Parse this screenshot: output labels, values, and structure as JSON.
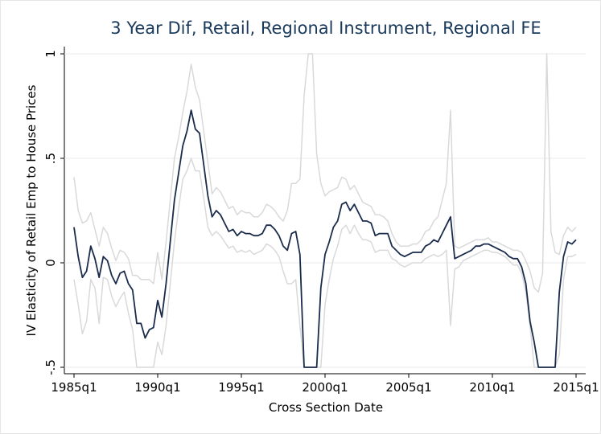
{
  "chart_data": {
    "type": "line",
    "title": "3 Year Dif, Retail, Regional Instrument, Regional FE",
    "x_label": "Cross Section Date",
    "y_label": "IV Elasticity of Retail Emp to House Prices",
    "x": [
      1985,
      1985.25,
      1985.5,
      1985.75,
      1986,
      1986.25,
      1986.5,
      1986.75,
      1987,
      1987.25,
      1987.5,
      1987.75,
      1988,
      1988.25,
      1988.5,
      1988.75,
      1989,
      1989.25,
      1989.5,
      1989.75,
      1990,
      1990.25,
      1990.5,
      1990.75,
      1991,
      1991.25,
      1991.5,
      1991.75,
      1992,
      1992.25,
      1992.5,
      1992.75,
      1993,
      1993.25,
      1993.5,
      1993.75,
      1994,
      1994.25,
      1994.5,
      1994.75,
      1995,
      1995.25,
      1995.5,
      1995.75,
      1996,
      1996.25,
      1996.5,
      1996.75,
      1997,
      1997.25,
      1997.5,
      1997.75,
      1998,
      1998.25,
      1998.5,
      1998.75,
      1999,
      1999.25,
      1999.5,
      1999.75,
      2000,
      2000.25,
      2000.5,
      2000.75,
      2001,
      2001.25,
      2001.5,
      2001.75,
      2002,
      2002.25,
      2002.5,
      2002.75,
      2003,
      2003.25,
      2003.5,
      2003.75,
      2004,
      2004.25,
      2004.5,
      2004.75,
      2005,
      2005.25,
      2005.5,
      2005.75,
      2006,
      2006.25,
      2006.5,
      2006.75,
      2007,
      2007.25,
      2007.5,
      2007.75,
      2008,
      2008.25,
      2008.5,
      2008.75,
      2009,
      2009.25,
      2009.5,
      2009.75,
      2010,
      2010.25,
      2010.5,
      2010.75,
      2011,
      2011.25,
      2011.5,
      2011.75,
      2012,
      2012.25,
      2012.5,
      2012.75,
      2013,
      2013.25,
      2013.5,
      2013.75,
      2014,
      2014.25,
      2014.5,
      2014.75,
      2015
    ],
    "series": [
      {
        "color": "#d9d9d9",
        "values": [
          0.41,
          0.25,
          0.19,
          0.2,
          0.24,
          0.16,
          0.08,
          0.17,
          0.14,
          0.07,
          0.01,
          0.06,
          0.05,
          0.02,
          -0.06,
          -0.06,
          -0.08,
          -0.08,
          -0.08,
          -0.1,
          0.05,
          -0.08,
          0.1,
          0.3,
          0.5,
          0.6,
          0.72,
          0.82,
          0.95,
          0.84,
          0.78,
          0.63,
          0.48,
          0.33,
          0.36,
          0.34,
          0.3,
          0.26,
          0.27,
          0.23,
          0.25,
          0.24,
          0.24,
          0.22,
          0.22,
          0.24,
          0.28,
          0.27,
          0.25,
          0.22,
          0.2,
          0.25,
          0.38,
          0.38,
          0.4,
          0.8,
          1,
          1,
          0.52,
          0.38,
          0.32,
          0.34,
          0.35,
          0.36,
          0.41,
          0.4,
          0.35,
          0.37,
          0.33,
          0.29,
          0.28,
          0.27,
          0.23,
          0.23,
          0.22,
          0.2,
          0.14,
          0.1,
          0.08,
          0.08,
          0.08,
          0.09,
          0.09,
          0.11,
          0.15,
          0.16,
          0.2,
          0.22,
          0.3,
          0.38,
          0.73,
          0.08,
          0.07,
          0.08,
          0.09,
          0.1,
          0.11,
          0.11,
          0.11,
          0.12,
          0.1,
          0.1,
          0.09,
          0.08,
          0.07,
          0.06,
          0.06,
          0.05,
          0.01,
          -0.04,
          -0.12,
          -0.14,
          -0.05,
          1,
          0.15,
          0.05,
          0.04,
          0.13,
          0.17,
          0.15,
          0.17
        ]
      },
      {
        "color": "#d9d9d9",
        "values": [
          -0.08,
          -0.2,
          -0.34,
          -0.28,
          -0.08,
          -0.12,
          -0.29,
          -0.07,
          -0.08,
          -0.16,
          -0.21,
          -0.17,
          -0.14,
          -0.24,
          -0.32,
          -0.5,
          -0.5,
          -0.5,
          -0.5,
          -0.5,
          -0.38,
          -0.44,
          -0.3,
          -0.1,
          0.1,
          0.26,
          0.4,
          0.44,
          0.5,
          0.44,
          0.44,
          0.31,
          0.17,
          0.13,
          0.15,
          0.13,
          0.1,
          0.07,
          0.08,
          0.05,
          0.06,
          0.05,
          0.06,
          0.04,
          0.05,
          0.06,
          0.09,
          0.08,
          0.06,
          0.03,
          -0.04,
          -0.1,
          -0.1,
          -0.08,
          -0.3,
          -0.5,
          -0.5,
          -0.5,
          -0.5,
          -0.5,
          -0.2,
          -0.08,
          0.02,
          0.08,
          0.16,
          0.18,
          0.14,
          0.18,
          0.14,
          0.11,
          0.11,
          0.1,
          0.05,
          0.06,
          0.06,
          0.06,
          0.02,
          0.01,
          -0.01,
          -0.02,
          -0.01,
          0,
          0,
          0,
          0.02,
          0.03,
          0.04,
          0.03,
          0.04,
          0.06,
          -0.3,
          -0.03,
          -0.02,
          0.01,
          0.02,
          0.03,
          0.04,
          0.05,
          0.06,
          0.06,
          0.05,
          0.05,
          0.04,
          0.03,
          0.01,
          -0.01,
          -0.01,
          -0.05,
          -0.14,
          -0.3,
          -0.5,
          -0.5,
          -0.5,
          -0.5,
          -0.5,
          -0.5,
          -0.44,
          -0.08,
          0.03,
          0.03,
          0.04
        ]
      },
      {
        "color": "#1a2b4c",
        "values": [
          0.17,
          0.03,
          -0.07,
          -0.04,
          0.08,
          0.02,
          -0.07,
          0.03,
          0.01,
          -0.06,
          -0.1,
          -0.05,
          -0.04,
          -0.1,
          -0.13,
          -0.29,
          -0.29,
          -0.36,
          -0.32,
          -0.31,
          -0.18,
          -0.26,
          -0.1,
          0.1,
          0.3,
          0.43,
          0.56,
          0.63,
          0.73,
          0.64,
          0.62,
          0.47,
          0.32,
          0.22,
          0.25,
          0.23,
          0.19,
          0.15,
          0.16,
          0.13,
          0.15,
          0.14,
          0.14,
          0.13,
          0.13,
          0.14,
          0.18,
          0.18,
          0.16,
          0.13,
          0.08,
          0.06,
          0.14,
          0.15,
          0.04,
          -0.5,
          -0.5,
          -0.5,
          -0.5,
          -0.12,
          0.04,
          0.1,
          0.17,
          0.2,
          0.28,
          0.29,
          0.25,
          0.28,
          0.24,
          0.2,
          0.2,
          0.19,
          0.13,
          0.14,
          0.14,
          0.14,
          0.08,
          0.06,
          0.04,
          0.03,
          0.04,
          0.05,
          0.05,
          0.05,
          0.08,
          0.09,
          0.11,
          0.1,
          0.14,
          0.18,
          0.22,
          0.02,
          0.03,
          0.04,
          0.05,
          0.06,
          0.08,
          0.08,
          0.09,
          0.09,
          0.08,
          0.07,
          0.06,
          0.05,
          0.03,
          0.02,
          0.02,
          -0.02,
          -0.1,
          -0.28,
          -0.38,
          -0.5,
          -0.5,
          -0.5,
          -0.5,
          -0.5,
          -0.14,
          0.03,
          0.1,
          0.09,
          0.11
        ]
      }
    ],
    "xlim": [
      1985,
      2015
    ],
    "xticks": [
      {
        "value": 1985,
        "label": "1985q1"
      },
      {
        "value": 1990,
        "label": "1990q1"
      },
      {
        "value": 1995,
        "label": "1995q1"
      },
      {
        "value": 2000,
        "label": "2000q1"
      },
      {
        "value": 2005,
        "label": "2005q1"
      },
      {
        "value": 2010,
        "label": "2010q1"
      },
      {
        "value": 2015,
        "label": "2015q1"
      }
    ],
    "ylim": [
      -0.5,
      1
    ],
    "yticks": [
      {
        "value": -0.5,
        "label": "-.5"
      },
      0,
      {
        "value": 0.5,
        "label": ".5"
      },
      1
    ],
    "grid": true
  }
}
